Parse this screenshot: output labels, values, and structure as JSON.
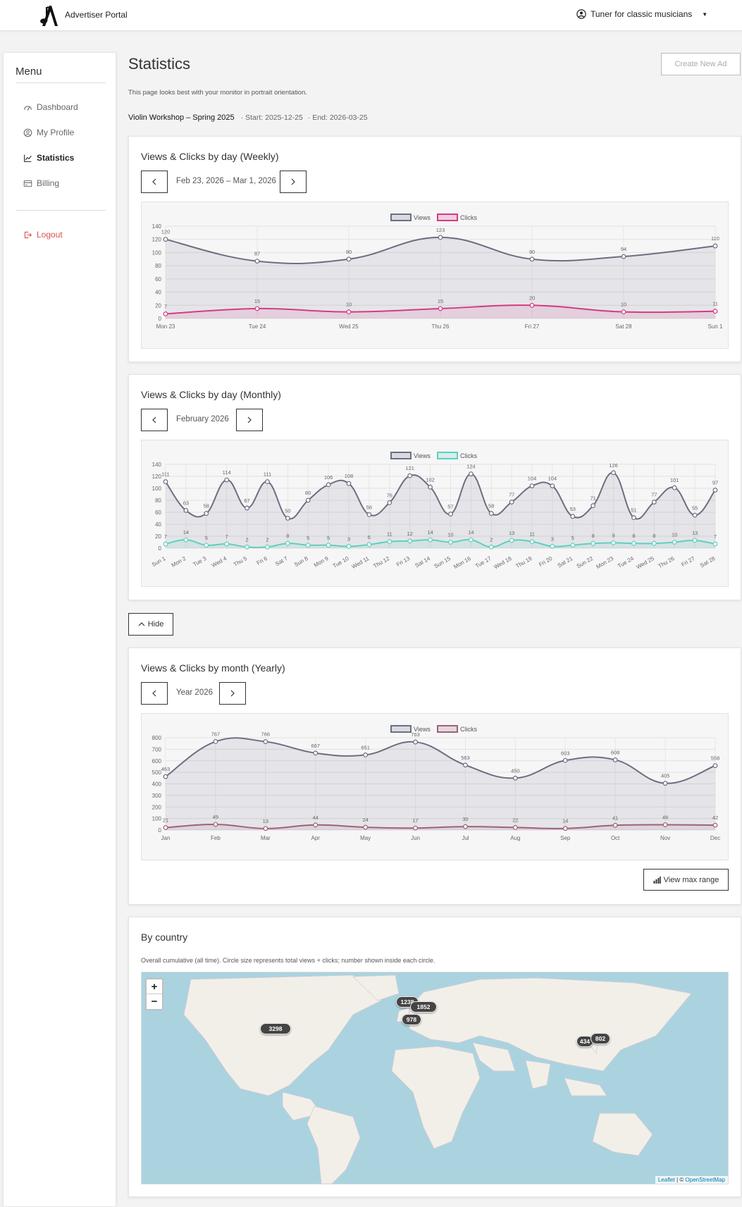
{
  "header": {
    "brand": "Advertiser Portal",
    "user": "Tuner for classic musicians"
  },
  "sidebar": {
    "title": "Menu",
    "items": [
      {
        "label": "Dashboard",
        "icon": "dashboard-icon"
      },
      {
        "label": "My Profile",
        "icon": "user-circle-icon"
      },
      {
        "label": "Statistics",
        "icon": "chart-line-icon",
        "active": true
      },
      {
        "label": "Billing",
        "icon": "credit-card-icon"
      }
    ],
    "logout": "Logout"
  },
  "page": {
    "title": "Statistics",
    "create_label": "Create New Ad",
    "hint": "This page looks best with your monitor in portrait orientation.",
    "campaign_name": "Violin Workshop – Spring 2025",
    "campaign_start": "· Start: 2025-12-25",
    "campaign_end": "· End: 2026-03-25",
    "hide_label": "Hide",
    "max_range_label": "View max range"
  },
  "weekly": {
    "title": "Views & Clicks by day (Weekly)",
    "range_label": "Feb 23, 2026 – Mar 1, 2026"
  },
  "monthly": {
    "title": "Views & Clicks by day (Monthly)",
    "range_label": "February 2026"
  },
  "yearly": {
    "title": "Views & Clicks by month (Yearly)",
    "range_label": "Year 2026"
  },
  "country": {
    "title": "By country",
    "description": "Overall cumulative (all time). Circle size represents total views + clicks; number shown inside each circle.",
    "markers": [
      {
        "value": "3298",
        "region": "north-america"
      },
      {
        "value": "1238",
        "region": "uk"
      },
      {
        "value": "1852",
        "region": "germany"
      },
      {
        "value": "978",
        "region": "france"
      },
      {
        "value": "434",
        "region": "south-korea"
      },
      {
        "value": "802",
        "region": "japan"
      }
    ],
    "attribution_leaflet": "Leaflet",
    "attribution_sep": " | © ",
    "attribution_osm": "OpenStreetMap"
  },
  "chart_data": [
    {
      "type": "line",
      "categories": [
        "Mon 23",
        "Tue 24",
        "Wed 25",
        "Thu 26",
        "Fri 27",
        "Sat 28",
        "Sun 1"
      ],
      "series": [
        {
          "name": "Views",
          "values": [
            120,
            87,
            90,
            123,
            90,
            94,
            110
          ],
          "color": "#6b6f80"
        },
        {
          "name": "Clicks",
          "values": [
            7,
            15,
            10,
            15,
            20,
            10,
            11
          ],
          "color": "#d63a82"
        }
      ],
      "ylim": [
        0,
        140
      ],
      "yticks": [
        0,
        20,
        40,
        60,
        80,
        100,
        120,
        140
      ],
      "legend": "top-center",
      "grid": true
    },
    {
      "type": "line",
      "categories": [
        "Sun 1",
        "Mon 2",
        "Tue 3",
        "Wed 4",
        "Thu 5",
        "Fri 6",
        "Sat 7",
        "Sun 8",
        "Mon 9",
        "Tue 10",
        "Wed 11",
        "Thu 12",
        "Fri 13",
        "Sat 14",
        "Sun 15",
        "Mon 16",
        "Tue 17",
        "Wed 18",
        "Thu 19",
        "Fri 20",
        "Sat 21",
        "Sun 22",
        "Mon 23",
        "Tue 24",
        "Wed 25",
        "Thu 26",
        "Fri 27",
        "Sat 28"
      ],
      "series": [
        {
          "name": "Views",
          "values": [
            111,
            63,
            58,
            114,
            67,
            111,
            50,
            80,
            106,
            108,
            56,
            76,
            121,
            102,
            57,
            124,
            58,
            77,
            104,
            104,
            53,
            71,
            126,
            51,
            77,
            101,
            55,
            97
          ],
          "color": "#6b6f80"
        },
        {
          "name": "Clicks",
          "values": [
            7,
            14,
            5,
            7,
            2,
            2,
            8,
            5,
            5,
            3,
            6,
            11,
            12,
            14,
            10,
            14,
            2,
            13,
            11,
            3,
            5,
            8,
            9,
            8,
            8,
            10,
            13,
            7
          ],
          "color": "#5fd0bd"
        }
      ],
      "ylim": [
        0,
        140
      ],
      "yticks": [
        0,
        20,
        40,
        60,
        80,
        100,
        120,
        140
      ],
      "legend": "top-center",
      "grid": true
    },
    {
      "type": "line",
      "categories": [
        "Jan",
        "Feb",
        "Mar",
        "Apr",
        "May",
        "Jun",
        "Jul",
        "Aug",
        "Sep",
        "Oct",
        "Nov",
        "Dec"
      ],
      "series": [
        {
          "name": "Views",
          "values": [
            463,
            767,
            766,
            667,
            651,
            763,
            563,
            450,
            603,
            608,
            405,
            558
          ],
          "color": "#6b6f80"
        },
        {
          "name": "Clicks",
          "values": [
            21,
            49,
            13,
            44,
            24,
            17,
            30,
            22,
            14,
            41,
            46,
            42
          ],
          "color": "#a0607a"
        }
      ],
      "ylim": [
        0,
        800
      ],
      "yticks": [
        0,
        100,
        200,
        300,
        400,
        500,
        600,
        700,
        800
      ],
      "legend": "top-center",
      "grid": true
    }
  ]
}
